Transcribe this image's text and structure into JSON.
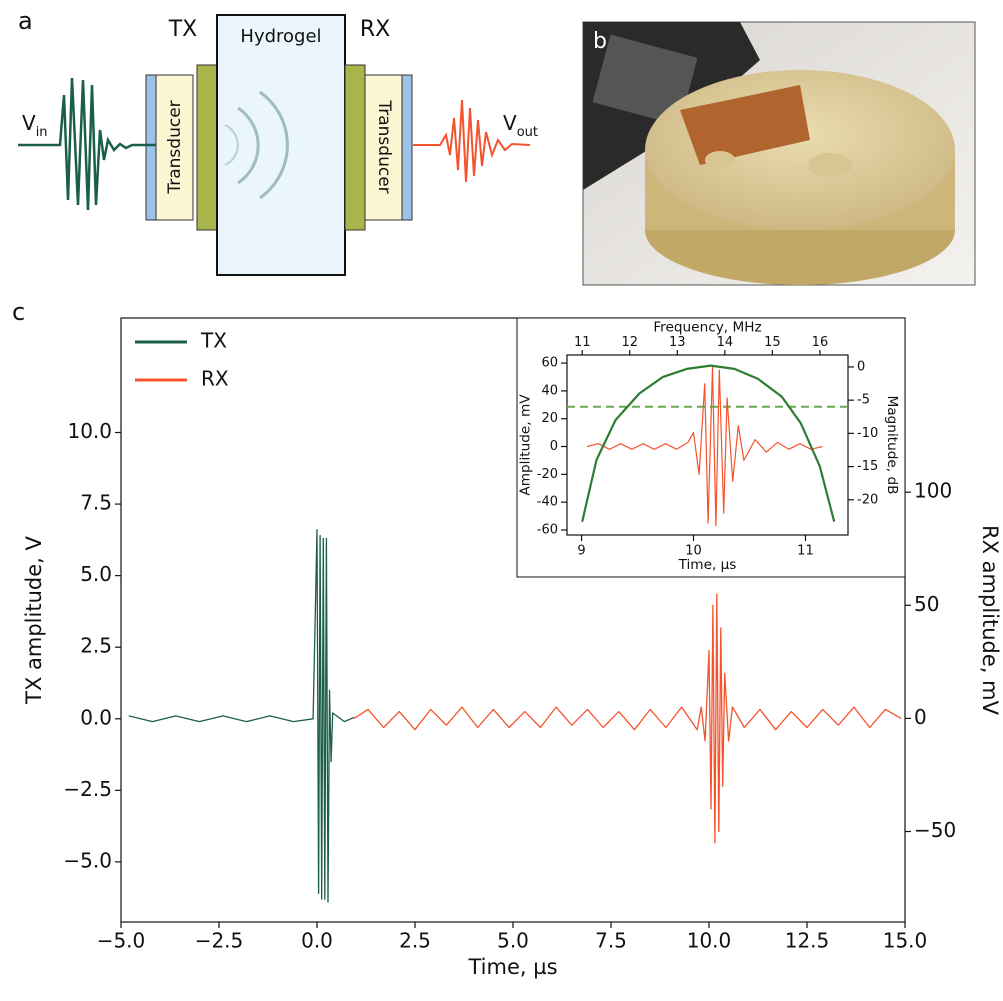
{
  "panel_labels": [
    "a",
    "b",
    "c"
  ],
  "diagram": {
    "tx": "TX",
    "rx": "RX",
    "medium": "Hydrogel",
    "transducers": [
      "Transducer",
      "Transducer"
    ],
    "input": {
      "text": "V",
      "subscript": "in"
    },
    "output": {
      "text": "V",
      "subscript": "out"
    }
  },
  "chart_data": [
    {
      "type": "line",
      "xlabel": "Time, µs",
      "ylabel": "TX amplitude, V",
      "y2label": "RX amplitude, mV",
      "xlim": [
        -5,
        15
      ],
      "xticks": [
        {
          "value": -5,
          "label": "−5.0"
        },
        {
          "value": -2.5,
          "label": "−2.5"
        },
        {
          "value": 0,
          "label": "0.0"
        },
        2.5,
        {
          "value": 5,
          "label": "5.0"
        },
        7.5,
        {
          "value": 10,
          "label": "10.0"
        },
        12.5,
        {
          "value": 15,
          "label": "15.0"
        }
      ],
      "ylim": [
        -7.1,
        14.0
      ],
      "yticks": [
        {
          "value": -5,
          "label": "−5.0"
        },
        {
          "value": -2.5,
          "label": "−2.5"
        },
        {
          "value": 0,
          "label": "0.0"
        },
        2.5,
        {
          "value": 5,
          "label": "5.0"
        },
        7.5,
        {
          "value": 10,
          "label": "10.0"
        }
      ],
      "y2lim": [
        -90,
        177
      ],
      "y2ticks": [
        {
          "value": -50,
          "label": "−50"
        },
        0,
        50,
        100
      ],
      "legend": "upper left",
      "series": [
        {
          "name": "TX",
          "color": "#1b5e4b",
          "x": [
            -4.8,
            -4.2,
            -3.6,
            -3.0,
            -2.4,
            -1.8,
            -1.2,
            -0.6,
            -0.1,
            0.0,
            0.04,
            0.08,
            0.12,
            0.16,
            0.2,
            0.24,
            0.28,
            0.32,
            0.36,
            0.4,
            0.5,
            0.7,
            0.95
          ],
          "values": [
            0.1,
            -0.1,
            0.1,
            -0.1,
            0.1,
            -0.1,
            0.1,
            -0.1,
            0,
            6.6,
            -6.1,
            6.4,
            -6.3,
            6.3,
            -6.3,
            6.3,
            -6.4,
            1.0,
            -1.5,
            0.2,
            0.1,
            -0.1,
            0.05
          ]
        },
        {
          "name": "RX",
          "color": "#f4532e",
          "axis": "y2",
          "x": [
            0.95,
            1.3,
            1.7,
            2.1,
            2.5,
            2.9,
            3.3,
            3.7,
            4.1,
            4.5,
            4.9,
            5.3,
            5.7,
            6.1,
            6.5,
            6.9,
            7.3,
            7.7,
            8.1,
            8.5,
            8.9,
            9.3,
            9.7,
            9.8,
            9.9,
            10.0,
            10.05,
            10.1,
            10.15,
            10.2,
            10.25,
            10.3,
            10.35,
            10.4,
            10.5,
            10.6,
            10.9,
            11.3,
            11.7,
            12.1,
            12.5,
            12.9,
            13.3,
            13.7,
            14.1,
            14.5,
            14.9
          ],
          "values": [
            0,
            4,
            -4,
            3,
            -5,
            4,
            -3,
            5,
            -4,
            4,
            -4,
            3,
            -4,
            5,
            -3,
            4,
            -4,
            3,
            -5,
            4,
            -4,
            5,
            -5,
            5,
            -10,
            30,
            -40,
            50,
            -55,
            55,
            -50,
            40,
            -30,
            20,
            -10,
            5,
            -4,
            4,
            -5,
            3,
            -4,
            4,
            -3,
            5,
            -4,
            4,
            0
          ]
        }
      ]
    },
    {
      "type": "line",
      "xlabel": "Time, µs",
      "ylabel": "Amplitude, mV",
      "x2label": "Frequency, MHz",
      "y2label": "Magnitude, dB",
      "xlim": [
        8.87,
        11.38
      ],
      "xticks": [
        9,
        10,
        11
      ],
      "x2lim": [
        10.68,
        16.59
      ],
      "x2ticks": [
        11,
        12,
        13,
        14,
        15,
        16
      ],
      "ylim": [
        -63.6,
        65.8
      ],
      "yticks": [
        -60,
        -40,
        -20,
        0,
        20,
        40,
        60
      ],
      "y2lim": [
        -25.3,
        1.8
      ],
      "y2ticks": [
        0,
        -5,
        -10,
        -15,
        -20
      ],
      "reference_line": {
        "value": -6,
        "axis": "y2",
        "style": "dashed",
        "color": "#6aa84f"
      },
      "series": [
        {
          "color": "#f4532e",
          "x": [
            9.05,
            9.15,
            9.25,
            9.35,
            9.45,
            9.55,
            9.65,
            9.75,
            9.85,
            9.95,
            10.0,
            10.05,
            10.1,
            10.13,
            10.17,
            10.2,
            10.23,
            10.27,
            10.3,
            10.35,
            10.4,
            10.45,
            10.55,
            10.65,
            10.75,
            10.85,
            10.95,
            11.05,
            11.15
          ],
          "values": [
            0,
            2,
            -2,
            2,
            -2,
            2,
            -2,
            2,
            -2,
            3,
            10,
            -20,
            45,
            -55,
            57,
            -57,
            55,
            -48,
            35,
            -25,
            15,
            -10,
            5,
            -4,
            3,
            -2,
            2,
            -2,
            0
          ]
        },
        {
          "color": "#2e7d32",
          "axis": "y2",
          "xaxis": "x2",
          "x": [
            11.0,
            11.3,
            11.7,
            12.2,
            12.7,
            13.2,
            13.7,
            14.2,
            14.7,
            15.2,
            15.6,
            16.0,
            16.3
          ],
          "values": [
            -23.3,
            -14,
            -8,
            -4,
            -1.5,
            -0.3,
            0.2,
            -0.3,
            -1.8,
            -4.5,
            -8.5,
            -15,
            -23.3
          ]
        }
      ]
    }
  ]
}
